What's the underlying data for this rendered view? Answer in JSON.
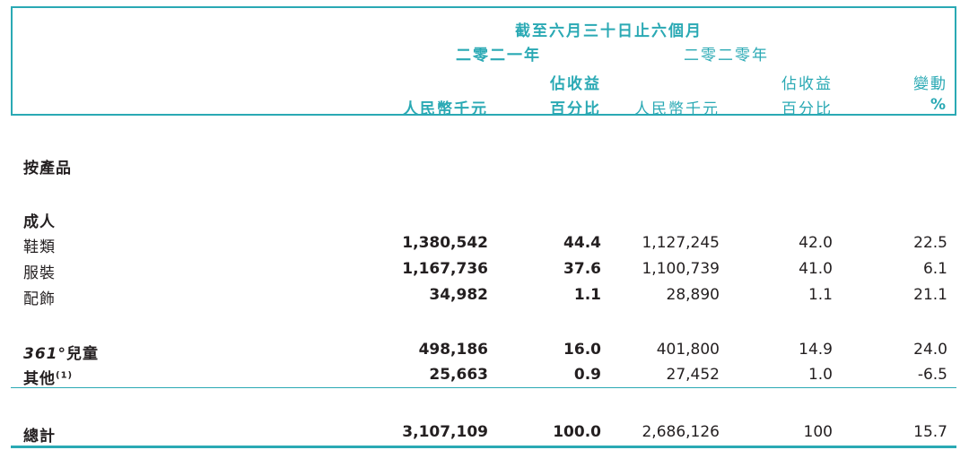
{
  "header": {
    "period": "截至六月三十日止六個月",
    "year_2021": "二零二一年",
    "year_2020": "二零二零年",
    "pct_rev_line1_2021": "佔收益",
    "pct_rev_line2_2021": "百分比",
    "pct_rev_line1_2020": "佔收益",
    "pct_rev_line2_2020": "百分比",
    "rmb_2021": "人民幣千元",
    "rmb_2020": "人民幣千元",
    "change_line1": "變動",
    "change_line2": "%"
  },
  "section_title": "按產品",
  "adult_title": "成人",
  "rows": [
    {
      "label": "鞋類",
      "rmb_2021": "1,380,542",
      "pct_2021": "44.4",
      "rmb_2020": "1,127,245",
      "pct_2020": "42.0",
      "change": "22.5"
    },
    {
      "label": "服裝",
      "rmb_2021": "1,167,736",
      "pct_2021": "37.6",
      "rmb_2020": "1,100,739",
      "pct_2020": "41.0",
      "change": "6.1"
    },
    {
      "label": "配飾",
      "rmb_2021": "34,982",
      "pct_2021": "1.1",
      "rmb_2020": "28,890",
      "pct_2020": "1.1",
      "change": "21.1"
    }
  ],
  "kids": {
    "label_brand": "361°",
    "label_rest": "兒童",
    "rmb_2021": "498,186",
    "pct_2021": "16.0",
    "rmb_2020": "401,800",
    "pct_2020": "14.9",
    "change": "24.0"
  },
  "others": {
    "label": "其他",
    "note": "(1)",
    "rmb_2021": "25,663",
    "pct_2021": "0.9",
    "rmb_2020": "27,452",
    "pct_2020": "1.0",
    "change": "-6.5"
  },
  "total": {
    "label": "總計",
    "rmb_2021": "3,107,109",
    "pct_2021": "100.0",
    "rmb_2020": "2,686,126",
    "pct_2020": "100",
    "change": "15.7"
  }
}
